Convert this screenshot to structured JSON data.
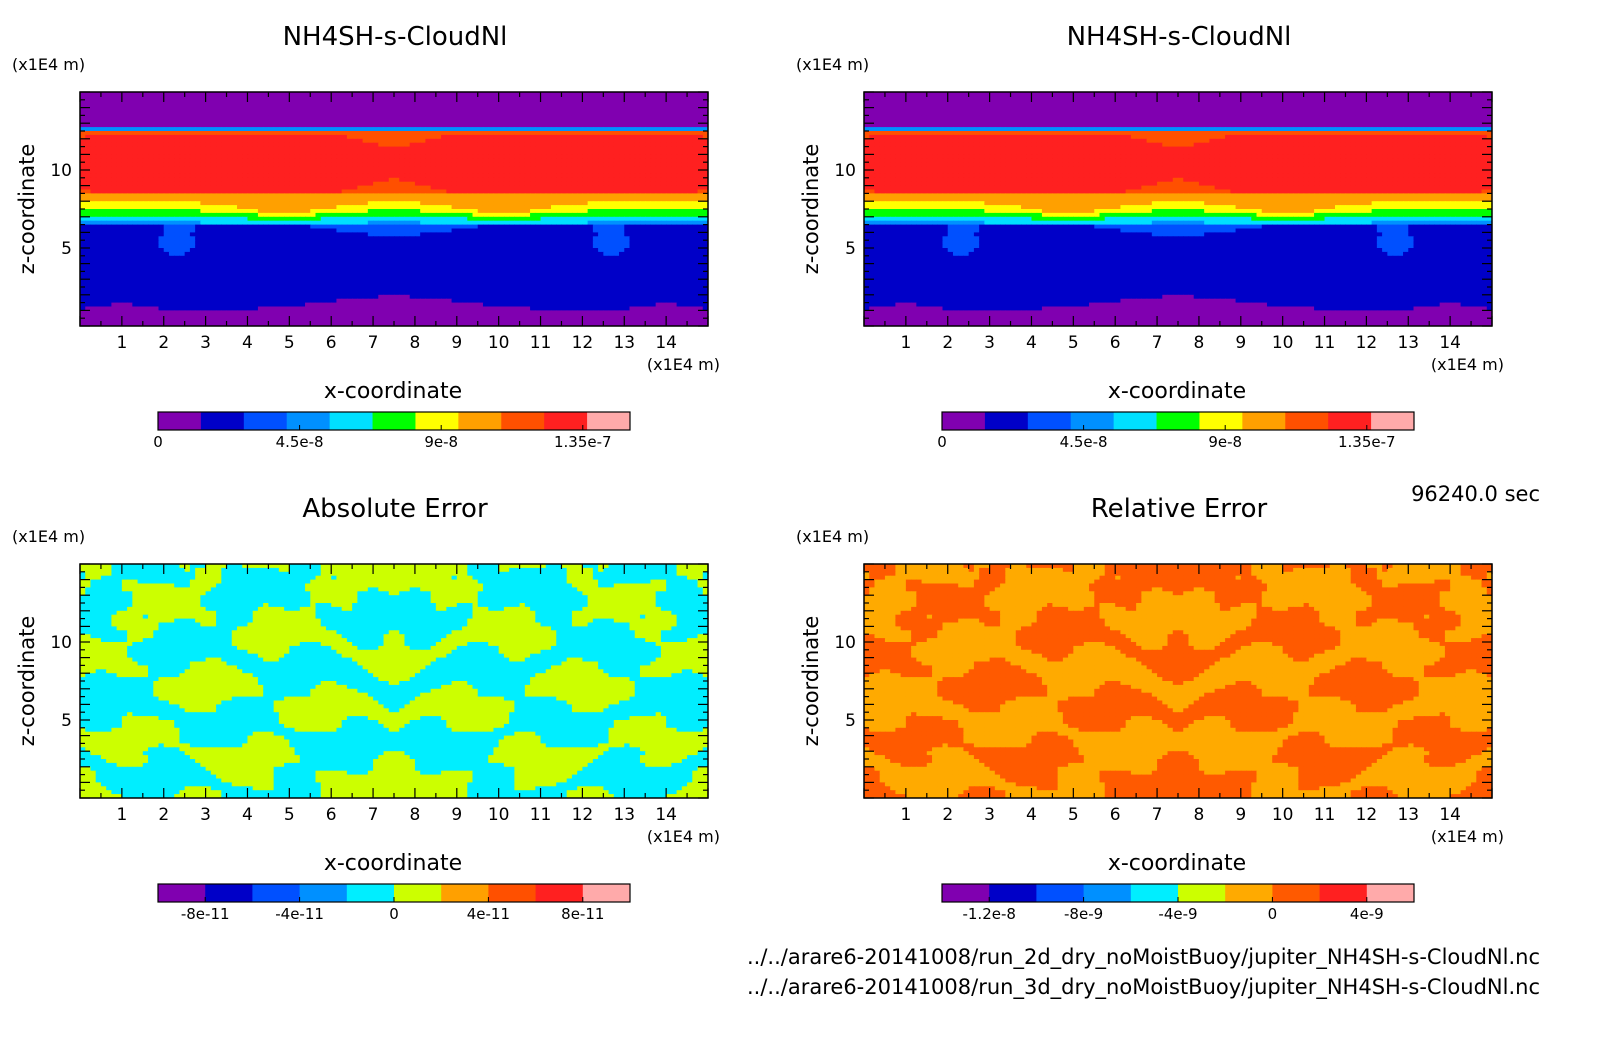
{
  "time_label": "96240.0 sec",
  "files": [
    "../../arare6-20141008/run_2d_dry_noMoistBuoy/jupiter_NH4SH-s-CloudNl.nc",
    "../../arare6-20141008/run_3d_dry_noMoistBuoy/jupiter_NH4SH-s-CloudNl.nc"
  ],
  "chart_data": [
    {
      "type": "heatmap",
      "title": "NH4SH-s-CloudNl",
      "xlabel": "x-coordinate",
      "ylabel": "z-coordinate",
      "x_unit": "(x1E4 m)",
      "y_unit": "(x1E4 m)",
      "xlim": [
        0,
        15
      ],
      "ylim": [
        0,
        15
      ],
      "xticks": [
        1,
        2,
        3,
        4,
        5,
        6,
        7,
        8,
        9,
        10,
        11,
        12,
        13,
        14
      ],
      "yticks": [
        5,
        10
      ],
      "field": "mixing",
      "colorbar": {
        "levels": 10,
        "colors": [
          "#8000b0",
          "#0000c8",
          "#0050ff",
          "#0090ff",
          "#00e0ff",
          "#00ff00",
          "#ffff00",
          "#ffa000",
          "#ff5000",
          "#ff2020",
          "#ffaaaa"
        ],
        "tick_values": [
          0,
          4.5e-08,
          9e-08,
          1.35e-07
        ],
        "tick_labels": [
          "0",
          "4.5e-8",
          "9e-8",
          "1.35e-7"
        ],
        "range": [
          0,
          1.5e-07
        ]
      }
    },
    {
      "type": "heatmap",
      "title": "NH4SH-s-CloudNl",
      "xlabel": "x-coordinate",
      "ylabel": "z-coordinate",
      "x_unit": "(x1E4 m)",
      "y_unit": "(x1E4 m)",
      "xlim": [
        0,
        15
      ],
      "ylim": [
        0,
        15
      ],
      "xticks": [
        1,
        2,
        3,
        4,
        5,
        6,
        7,
        8,
        9,
        10,
        11,
        12,
        13,
        14
      ],
      "yticks": [
        5,
        10
      ],
      "field": "mixing",
      "colorbar": {
        "levels": 10,
        "colors": [
          "#8000b0",
          "#0000c8",
          "#0050ff",
          "#0090ff",
          "#00e0ff",
          "#00ff00",
          "#ffff00",
          "#ffa000",
          "#ff5000",
          "#ff2020",
          "#ffaaaa"
        ],
        "tick_values": [
          0,
          4.5e-08,
          9e-08,
          1.35e-07
        ],
        "tick_labels": [
          "0",
          "4.5e-8",
          "9e-8",
          "1.35e-7"
        ],
        "range": [
          0,
          1.5e-07
        ]
      }
    },
    {
      "type": "heatmap",
      "title": "Absolute Error",
      "xlabel": "x-coordinate",
      "ylabel": "z-coordinate",
      "x_unit": "(x1E4 m)",
      "y_unit": "(x1E4 m)",
      "xlim": [
        0,
        15
      ],
      "ylim": [
        0,
        15
      ],
      "xticks": [
        1,
        2,
        3,
        4,
        5,
        6,
        7,
        8,
        9,
        10,
        11,
        12,
        13,
        14
      ],
      "yticks": [
        5,
        10
      ],
      "field": "abs",
      "field_colors": [
        "#ccff00",
        "#00eeff"
      ],
      "colorbar": {
        "levels": 10,
        "colors": [
          "#8000b0",
          "#0000c8",
          "#0050ff",
          "#0090ff",
          "#00eeff",
          "#ccff00",
          "#ffa000",
          "#ff5000",
          "#ff2020",
          "#ffaaaa"
        ],
        "tick_values": [
          -8e-11,
          -4e-11,
          0,
          4e-11,
          8e-11
        ],
        "tick_labels": [
          "-8e-11",
          "-4e-11",
          "0",
          "4e-11",
          "8e-11"
        ],
        "range": [
          -1e-10,
          1e-10
        ]
      }
    },
    {
      "type": "heatmap",
      "title": "Relative Error",
      "xlabel": "x-coordinate",
      "ylabel": "z-coordinate",
      "x_unit": "(x1E4 m)",
      "y_unit": "(x1E4 m)",
      "xlim": [
        0,
        15
      ],
      "ylim": [
        0,
        15
      ],
      "xticks": [
        1,
        2,
        3,
        4,
        5,
        6,
        7,
        8,
        9,
        10,
        11,
        12,
        13,
        14
      ],
      "yticks": [
        5,
        10
      ],
      "field": "rel",
      "field_colors": [
        "#ff5a00",
        "#ffaa00"
      ],
      "colorbar": {
        "levels": 10,
        "colors": [
          "#8000b0",
          "#0000c8",
          "#0050ff",
          "#0090ff",
          "#00eeff",
          "#ccff00",
          "#ffaa00",
          "#ff5a00",
          "#ff2020",
          "#ffaaaa"
        ],
        "tick_values": [
          -1.2e-08,
          -8e-09,
          -4e-09,
          0,
          4e-09
        ],
        "tick_labels": [
          "-1.2e-8",
          "-8e-9",
          "-4e-9",
          "0",
          "4e-9"
        ],
        "range": [
          -1.4e-08,
          6e-09
        ]
      }
    }
  ]
}
